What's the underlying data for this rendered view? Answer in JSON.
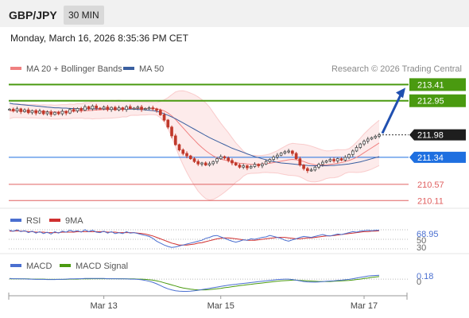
{
  "header": {
    "pair": "GBP/JPY",
    "timeframe": "30 MIN",
    "datetime": "Monday, March 16, 2026 8:35:36 PM CET"
  },
  "colors": {
    "ma20_bands": "#f08080",
    "ma50": "#3a5fa0",
    "target_green": "#4a9a10",
    "pivot_blue": "#1e6fe0",
    "support_red": "#e06060",
    "candle_up": "#4a4a4a",
    "candle_down": "#c0392b",
    "rsi": "#4a6fd0",
    "rsi_9ma": "#d03030",
    "macd": "#4a6fd0",
    "macd_signal": "#4a9a10",
    "arrow": "#2050b0"
  },
  "chart_data": [
    {
      "type": "candlestick",
      "legend": [
        "MA 20 + Bollinger Bands",
        "MA 50"
      ],
      "credit": "Research © 2026 Trading Central",
      "ylim": [
        209.98,
        213.6
      ],
      "levels": [
        {
          "value": 213.41,
          "label": "213.41",
          "kind": "target"
        },
        {
          "value": 212.95,
          "label": "212.95",
          "kind": "target"
        },
        {
          "value": 211.98,
          "label": "211.98",
          "kind": "last"
        },
        {
          "value": 211.34,
          "label": "211.34",
          "kind": "pivot"
        },
        {
          "value": 210.57,
          "label": "210.57",
          "kind": "support"
        },
        {
          "value": 210.11,
          "label": "210.11",
          "kind": "support"
        }
      ],
      "closes": [
        212.71,
        212.66,
        212.72,
        212.64,
        212.69,
        212.61,
        212.67,
        212.6,
        212.66,
        212.58,
        212.63,
        212.56,
        212.62,
        212.58,
        212.65,
        212.6,
        212.7,
        212.66,
        212.73,
        212.68,
        212.78,
        212.72,
        212.8,
        212.74,
        212.72,
        212.77,
        212.7,
        212.76,
        212.69,
        212.75,
        212.7,
        212.78,
        212.73,
        212.74,
        212.77,
        212.7,
        212.73,
        212.75,
        212.72,
        212.68,
        212.55,
        212.4,
        212.2,
        211.95,
        211.7,
        211.55,
        211.45,
        211.38,
        211.3,
        211.22,
        211.15,
        211.18,
        211.12,
        211.16,
        211.22,
        211.3,
        211.36,
        211.32,
        211.25,
        211.18,
        211.12,
        211.06,
        211.1,
        211.04,
        211.08,
        211.14,
        211.1,
        211.15,
        211.22,
        211.28,
        211.35,
        211.4,
        211.46,
        211.5,
        211.52,
        211.45,
        211.3,
        211.12,
        211.02,
        210.96,
        210.98,
        211.06,
        211.14,
        211.2,
        211.24,
        211.28,
        211.24,
        211.3,
        211.26,
        211.34,
        211.42,
        211.52,
        211.62,
        211.72,
        211.8,
        211.86,
        211.9,
        211.94,
        211.98
      ],
      "ma20": [
        212.66,
        212.66,
        212.67,
        212.66,
        212.66,
        212.65,
        212.65,
        212.65,
        212.64,
        212.64,
        212.64,
        212.63,
        212.63,
        212.63,
        212.64,
        212.64,
        212.65,
        212.65,
        212.66,
        212.66,
        212.67,
        212.67,
        212.68,
        212.69,
        212.69,
        212.7,
        212.7,
        212.71,
        212.71,
        212.72,
        212.72,
        212.72,
        212.73,
        212.73,
        212.73,
        212.73,
        212.73,
        212.73,
        212.73,
        212.72,
        212.7,
        212.66,
        212.6,
        212.52,
        212.42,
        212.3,
        212.18,
        212.06,
        211.94,
        211.83,
        211.72,
        211.62,
        211.53,
        211.45,
        211.38,
        211.33,
        211.29,
        211.26,
        211.24,
        211.21,
        211.19,
        211.17,
        211.16,
        211.15,
        211.14,
        211.14,
        211.14,
        211.15,
        211.16,
        211.17,
        211.19,
        211.21,
        211.23,
        211.25,
        211.27,
        211.28,
        211.27,
        211.25,
        211.22,
        211.18,
        211.15,
        211.13,
        211.12,
        211.12,
        211.13,
        211.14,
        211.15,
        211.17,
        211.19,
        211.22,
        211.25,
        211.29,
        211.34,
        211.4,
        211.47,
        211.54,
        211.61,
        211.68,
        211.75
      ],
      "ma50": [
        212.88,
        212.86,
        212.85,
        212.84,
        212.83,
        212.82,
        212.81,
        212.8,
        212.79,
        212.78,
        212.77,
        212.76,
        212.75,
        212.75,
        212.74,
        212.74,
        212.73,
        212.73,
        212.72,
        212.72,
        212.72,
        212.72,
        212.72,
        212.72,
        212.72,
        212.72,
        212.71,
        212.71,
        212.71,
        212.71,
        212.71,
        212.71,
        212.71,
        212.71,
        212.7,
        212.7,
        212.69,
        212.68,
        212.67,
        212.65,
        212.62,
        212.58,
        212.54,
        212.49,
        212.44,
        212.38,
        212.32,
        212.26,
        212.2,
        212.14,
        212.08,
        212.02,
        211.96,
        211.9,
        211.85,
        211.8,
        211.75,
        211.7,
        211.65,
        211.6,
        211.56,
        211.52,
        211.48,
        211.44,
        211.4,
        211.36,
        211.33,
        211.3,
        211.27,
        211.24,
        211.22,
        211.2,
        211.18,
        211.17,
        211.16,
        211.15,
        211.14,
        211.13,
        211.12,
        211.11,
        211.1,
        211.1,
        211.1,
        211.1,
        211.1,
        211.11,
        211.11,
        211.12,
        211.13,
        211.14,
        211.15,
        211.17,
        211.19,
        211.21,
        211.24,
        211.27,
        211.3,
        211.33,
        211.36
      ]
    },
    {
      "type": "line",
      "legend": [
        "RSI",
        "9MA"
      ],
      "last_value": "68.95",
      "ylim": [
        25,
        75
      ],
      "ticks": [
        "50",
        "30"
      ],
      "rsi": [
        69,
        67,
        70,
        66,
        68,
        64,
        67,
        63,
        66,
        62,
        65,
        61,
        66,
        63,
        67,
        65,
        69,
        66,
        68,
        65,
        70,
        66,
        69,
        65,
        64,
        67,
        63,
        66,
        62,
        64,
        62,
        66,
        63,
        64,
        62,
        60,
        58,
        56,
        52,
        46,
        42,
        38,
        35,
        33,
        34,
        36,
        38,
        40,
        42,
        44,
        46,
        48,
        52,
        54,
        57,
        58,
        55,
        52,
        49,
        46,
        44,
        46,
        49,
        48,
        51,
        50,
        52,
        54,
        55,
        58,
        56,
        54,
        52,
        48,
        46,
        49,
        51,
        54,
        56,
        55,
        54,
        56,
        58,
        60,
        58,
        57,
        59,
        61,
        60,
        62,
        64,
        66,
        65,
        67,
        68,
        69,
        68,
        69,
        69
      ],
      "ma9": [
        67,
        67,
        68,
        67,
        67,
        66,
        66,
        65,
        65,
        65,
        64,
        64,
        64,
        64,
        65,
        65,
        65,
        65,
        66,
        66,
        66,
        66,
        66,
        66,
        66,
        66,
        65,
        65,
        65,
        64,
        64,
        64,
        64,
        64,
        63,
        62,
        61,
        59,
        57,
        54,
        51,
        48,
        45,
        42,
        40,
        38,
        38,
        38,
        39,
        40,
        42,
        43,
        45,
        47,
        49,
        51,
        52,
        53,
        53,
        52,
        51,
        50,
        49,
        48,
        48,
        48,
        49,
        50,
        51,
        52,
        53,
        54,
        54,
        54,
        53,
        52,
        51,
        51,
        52,
        53,
        53,
        54,
        55,
        56,
        57,
        57,
        58,
        59,
        60,
        61,
        62,
        63,
        64,
        65,
        66,
        66,
        67,
        67,
        68
      ]
    },
    {
      "type": "line",
      "legend": [
        "MACD",
        "MACD Signal"
      ],
      "last_value": "0.18",
      "ylim": [
        -0.7,
        0.3
      ],
      "ticks": [
        "0"
      ],
      "macd": [
        0.03,
        0.02,
        0.02,
        0.01,
        0.01,
        0.0,
        0.0,
        -0.01,
        -0.01,
        -0.01,
        -0.02,
        -0.02,
        -0.02,
        -0.01,
        -0.01,
        0.0,
        0.01,
        0.01,
        0.02,
        0.02,
        0.03,
        0.03,
        0.03,
        0.03,
        0.03,
        0.03,
        0.02,
        0.02,
        0.02,
        0.01,
        0.01,
        0.01,
        0.0,
        0.0,
        -0.01,
        -0.03,
        -0.06,
        -0.1,
        -0.15,
        -0.22,
        -0.3,
        -0.38,
        -0.45,
        -0.5,
        -0.54,
        -0.56,
        -0.57,
        -0.57,
        -0.56,
        -0.54,
        -0.52,
        -0.49,
        -0.46,
        -0.43,
        -0.4,
        -0.37,
        -0.34,
        -0.31,
        -0.28,
        -0.26,
        -0.24,
        -0.22,
        -0.2,
        -0.18,
        -0.16,
        -0.14,
        -0.12,
        -0.1,
        -0.08,
        -0.06,
        -0.04,
        -0.02,
        -0.01,
        0.0,
        0.0,
        -0.02,
        -0.05,
        -0.08,
        -0.11,
        -0.13,
        -0.14,
        -0.14,
        -0.13,
        -0.12,
        -0.1,
        -0.09,
        -0.08,
        -0.06,
        -0.05,
        -0.03,
        -0.01,
        0.02,
        0.05,
        0.08,
        0.11,
        0.14,
        0.16,
        0.17,
        0.18
      ],
      "signal": [
        0.01,
        0.01,
        0.01,
        0.01,
        0.01,
        0.01,
        0.0,
        0.0,
        0.0,
        0.0,
        -0.01,
        -0.01,
        -0.01,
        -0.01,
        -0.01,
        -0.01,
        0.0,
        0.0,
        0.0,
        0.01,
        0.01,
        0.01,
        0.02,
        0.02,
        0.02,
        0.02,
        0.02,
        0.02,
        0.02,
        0.02,
        0.02,
        0.01,
        0.01,
        0.01,
        0.0,
        0.0,
        -0.01,
        -0.03,
        -0.05,
        -0.08,
        -0.12,
        -0.17,
        -0.22,
        -0.27,
        -0.32,
        -0.37,
        -0.41,
        -0.44,
        -0.47,
        -0.49,
        -0.5,
        -0.5,
        -0.5,
        -0.49,
        -0.47,
        -0.45,
        -0.43,
        -0.4,
        -0.38,
        -0.35,
        -0.33,
        -0.3,
        -0.28,
        -0.26,
        -0.24,
        -0.22,
        -0.2,
        -0.18,
        -0.16,
        -0.14,
        -0.12,
        -0.1,
        -0.08,
        -0.07,
        -0.06,
        -0.05,
        -0.05,
        -0.06,
        -0.07,
        -0.08,
        -0.09,
        -0.1,
        -0.11,
        -0.11,
        -0.11,
        -0.11,
        -0.1,
        -0.09,
        -0.08,
        -0.07,
        -0.06,
        -0.04,
        -0.02,
        0.0,
        0.03,
        0.05,
        0.08,
        0.1,
        0.12
      ]
    }
  ],
  "x_axis": {
    "ticks": [
      {
        "label": "Mar 13",
        "index": 25
      },
      {
        "label": "Mar 15",
        "index": 56
      },
      {
        "label": "Mar 17",
        "index": 94
      }
    ]
  }
}
